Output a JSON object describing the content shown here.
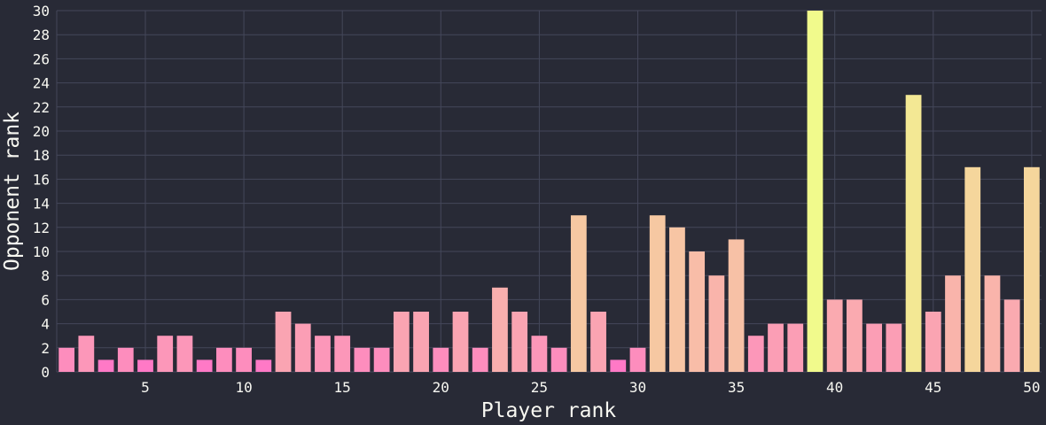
{
  "chart_data": {
    "type": "bar",
    "xlabel": "Player rank",
    "ylabel": "Opponent rank",
    "x": [
      1,
      2,
      3,
      4,
      5,
      6,
      7,
      8,
      9,
      10,
      11,
      12,
      13,
      14,
      15,
      16,
      17,
      18,
      19,
      20,
      21,
      22,
      23,
      24,
      25,
      26,
      27,
      28,
      29,
      30,
      31,
      32,
      33,
      34,
      35,
      36,
      37,
      38,
      39,
      40,
      41,
      42,
      43,
      44,
      45,
      46,
      47,
      48,
      49,
      50
    ],
    "values": [
      2,
      3,
      1,
      2,
      1,
      3,
      3,
      1,
      2,
      2,
      1,
      5,
      4,
      3,
      3,
      2,
      2,
      5,
      5,
      2,
      5,
      2,
      7,
      5,
      3,
      2,
      13,
      5,
      1,
      2,
      13,
      12,
      10,
      8,
      11,
      3,
      4,
      4,
      30,
      6,
      6,
      4,
      4,
      23,
      5,
      8,
      17,
      8,
      6,
      17
    ],
    "xlim": [
      0.5,
      50.5
    ],
    "ylim": [
      0,
      30
    ],
    "xticks": [
      5,
      10,
      15,
      20,
      25,
      30,
      35,
      40,
      45,
      50
    ],
    "yticks": [
      0,
      2,
      4,
      6,
      8,
      10,
      12,
      14,
      16,
      18,
      20,
      22,
      24,
      26,
      28,
      30
    ],
    "grid": true,
    "colors": {
      "low": "#ff79c6",
      "high": "#f1fa8c",
      "background": "#282a36",
      "grid": "#44475a",
      "text": "#f8f8f2"
    }
  }
}
